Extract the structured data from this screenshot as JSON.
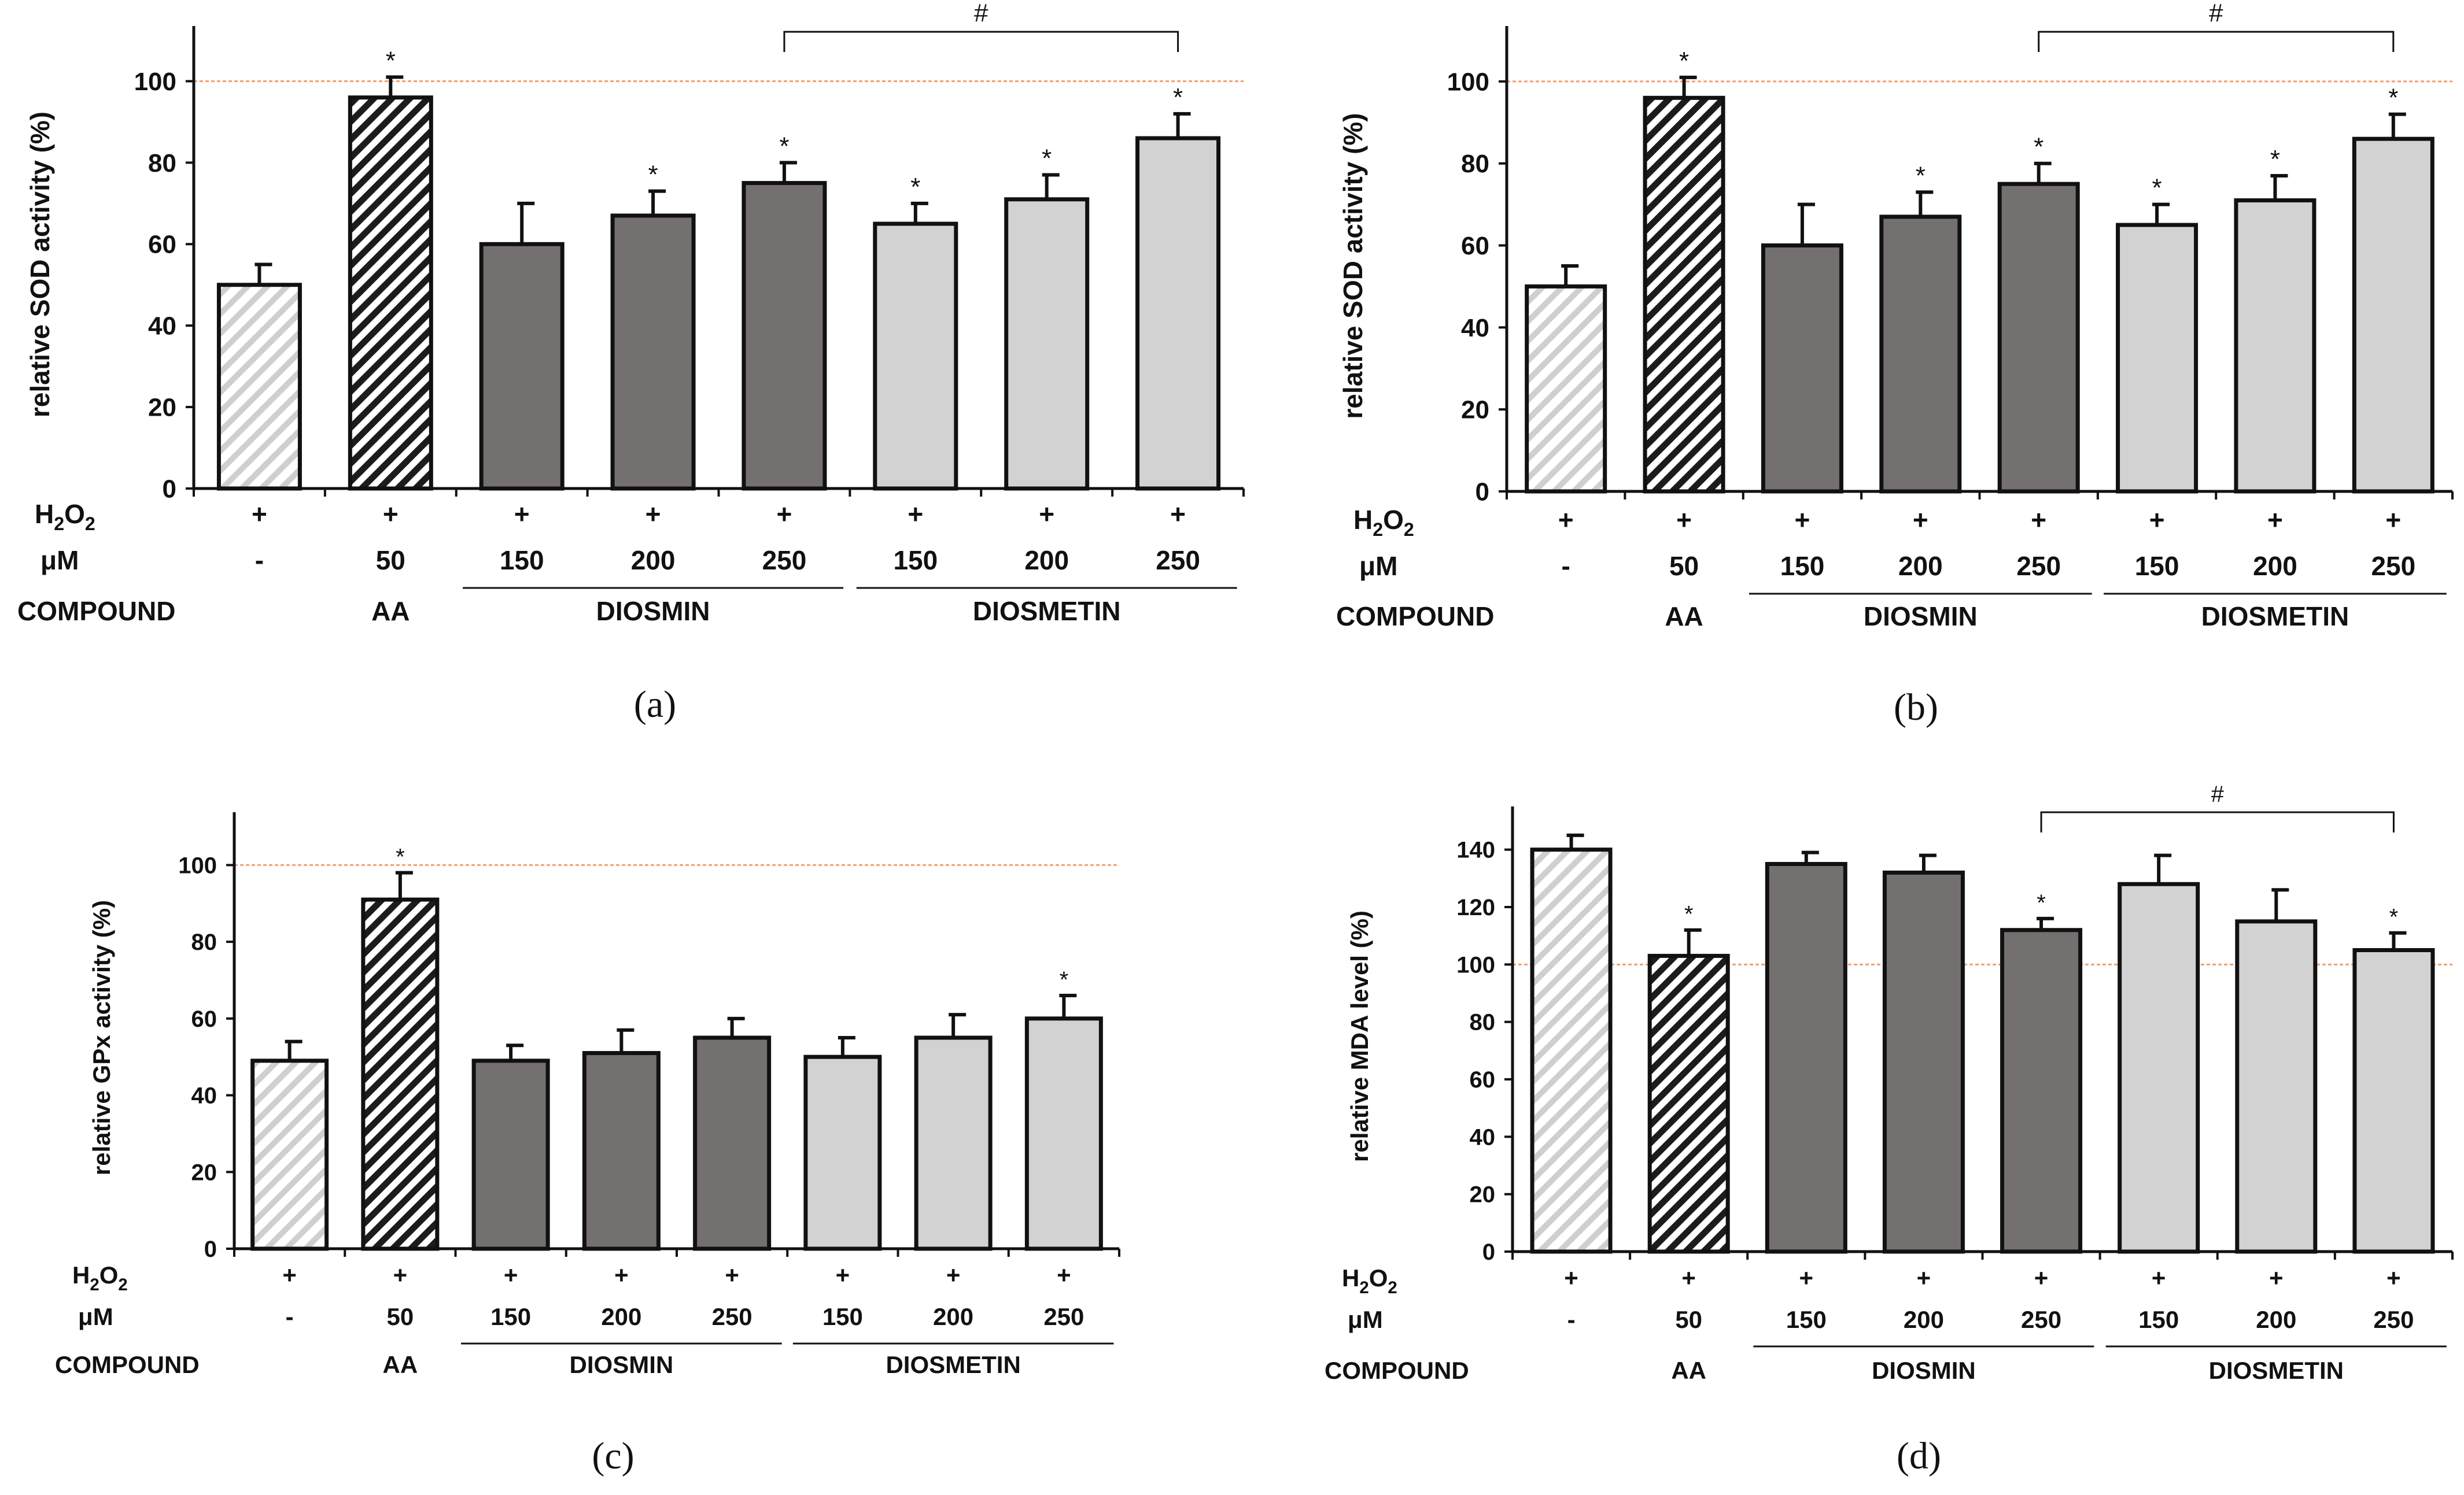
{
  "figure": {
    "row_labels": {
      "h2o2": "H",
      "h2o2_sub": "2",
      "h2o2_o": "O",
      "h2o2_sub2": "2",
      "um": "μM",
      "compound": "COMPOUND"
    },
    "colors": {
      "control": "#d6d6d6",
      "aa": "#222222",
      "diosmin": "#747070",
      "diosmetin": "#d2d2d2",
      "reference_line": "#f0a070",
      "axis": "#111111"
    },
    "reference_value": 100
  },
  "chart_data": [
    {
      "panel": "(a)",
      "type": "bar",
      "ylabel": "relative SOD activity (%)",
      "ylim": [
        0,
        110
      ],
      "yticks": [
        0,
        20,
        40,
        60,
        80,
        100
      ],
      "categories": [
        "-",
        "50",
        "150",
        "200",
        "250",
        "150",
        "200",
        "250"
      ],
      "conditions": [
        "+",
        "+",
        "+",
        "+",
        "+",
        "+",
        "+",
        "+"
      ],
      "groups": [
        {
          "label": "",
          "span": [
            0,
            0
          ]
        },
        {
          "label": "AA",
          "span": [
            1,
            1
          ]
        },
        {
          "label": "DIOSMIN",
          "span": [
            2,
            4
          ]
        },
        {
          "label": "DIOSMETIN",
          "span": [
            5,
            7
          ]
        }
      ],
      "values": [
        50,
        96,
        60,
        67,
        75,
        65,
        71,
        86
      ],
      "errors": [
        5,
        5,
        10,
        6,
        5,
        5,
        6,
        6
      ],
      "fills": [
        "control",
        "aa",
        "diosmin",
        "diosmin",
        "diosmin",
        "diosmetin",
        "diosmetin",
        "diosmetin"
      ],
      "significance": [
        "",
        "*",
        "",
        "*",
        "*",
        "*",
        "*",
        "*"
      ],
      "bracket": {
        "from": 4,
        "to": 7,
        "label": "#"
      }
    },
    {
      "panel": "(b)",
      "type": "bar",
      "ylabel": "relative SOD activity (%)",
      "ylim": [
        0,
        110
      ],
      "yticks": [
        0,
        20,
        40,
        60,
        80,
        100
      ],
      "categories": [
        "-",
        "50",
        "150",
        "200",
        "250",
        "150",
        "200",
        "250"
      ],
      "conditions": [
        "+",
        "+",
        "+",
        "+",
        "+",
        "+",
        "+",
        "+"
      ],
      "groups": [
        {
          "label": "",
          "span": [
            0,
            0
          ]
        },
        {
          "label": "AA",
          "span": [
            1,
            1
          ]
        },
        {
          "label": "DIOSMIN",
          "span": [
            2,
            4
          ]
        },
        {
          "label": "DIOSMETIN",
          "span": [
            5,
            7
          ]
        }
      ],
      "values": [
        50,
        96,
        60,
        67,
        75,
        65,
        71,
        86
      ],
      "errors": [
        5,
        5,
        10,
        6,
        5,
        5,
        6,
        6
      ],
      "fills": [
        "control",
        "aa",
        "diosmin",
        "diosmin",
        "diosmin",
        "diosmetin",
        "diosmetin",
        "diosmetin"
      ],
      "significance": [
        "",
        "*",
        "",
        "*",
        "*",
        "*",
        "*",
        "*"
      ],
      "bracket": {
        "from": 4,
        "to": 7,
        "label": "#"
      }
    },
    {
      "panel": "(c)",
      "type": "bar",
      "ylabel": "relative GPx activity (%)",
      "ylim": [
        0,
        110
      ],
      "yticks": [
        0,
        20,
        40,
        60,
        80,
        100
      ],
      "categories": [
        "-",
        "50",
        "150",
        "200",
        "250",
        "150",
        "200",
        "250"
      ],
      "conditions": [
        "+",
        "+",
        "+",
        "+",
        "+",
        "+",
        "+",
        "+"
      ],
      "groups": [
        {
          "label": "",
          "span": [
            0,
            0
          ]
        },
        {
          "label": "AA",
          "span": [
            1,
            1
          ]
        },
        {
          "label": "DIOSMIN",
          "span": [
            2,
            4
          ]
        },
        {
          "label": "DIOSMETIN",
          "span": [
            5,
            7
          ]
        }
      ],
      "values": [
        49,
        91,
        49,
        51,
        55,
        50,
        55,
        60
      ],
      "errors": [
        5,
        7,
        4,
        6,
        5,
        5,
        6,
        6
      ],
      "fills": [
        "control",
        "aa",
        "diosmin",
        "diosmin",
        "diosmin",
        "diosmetin",
        "diosmetin",
        "diosmetin"
      ],
      "significance": [
        "",
        "*",
        "",
        "",
        "",
        "",
        "",
        "*"
      ],
      "bracket": null
    },
    {
      "panel": "(d)",
      "type": "bar",
      "ylabel": "relative MDA level (%)",
      "ylim": [
        0,
        150
      ],
      "yticks": [
        0,
        20,
        40,
        60,
        80,
        100,
        120,
        140
      ],
      "categories": [
        "-",
        "50",
        "150",
        "200",
        "250",
        "150",
        "200",
        "250"
      ],
      "conditions": [
        "+",
        "+",
        "+",
        "+",
        "+",
        "+",
        "+",
        "+"
      ],
      "groups": [
        {
          "label": "",
          "span": [
            0,
            0
          ]
        },
        {
          "label": "AA",
          "span": [
            1,
            1
          ]
        },
        {
          "label": "DIOSMIN",
          "span": [
            2,
            4
          ]
        },
        {
          "label": "DIOSMETIN",
          "span": [
            5,
            7
          ]
        }
      ],
      "values": [
        140,
        103,
        135,
        132,
        112,
        128,
        115,
        105
      ],
      "errors": [
        5,
        9,
        4,
        6,
        4,
        10,
        11,
        6
      ],
      "fills": [
        "control",
        "aa",
        "diosmin",
        "diosmin",
        "diosmin",
        "diosmetin",
        "diosmetin",
        "diosmetin"
      ],
      "significance": [
        "",
        "*",
        "",
        "",
        "*",
        "",
        "",
        "*"
      ],
      "bracket": {
        "from": 4,
        "to": 7,
        "label": "#"
      }
    }
  ]
}
